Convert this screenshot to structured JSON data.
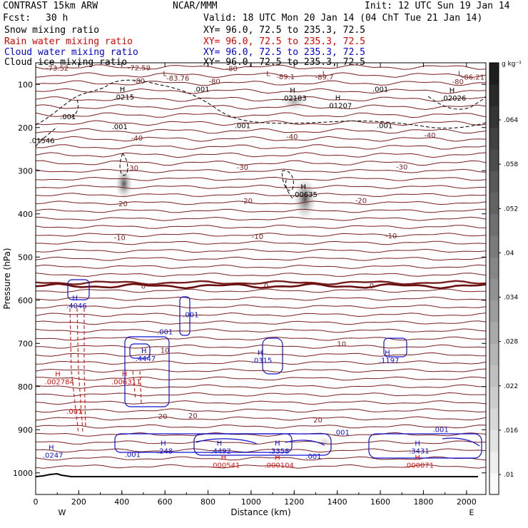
{
  "header": {
    "title": "CONTRAST 15km ARW",
    "org": "NCAR/MMM",
    "init": "Init: 12 UTC Sun 19 Jan 14",
    "fcst_label": "Fcst:",
    "fcst_value": "30 h",
    "valid": "Valid: 18 UTC Mon 20 Jan 14 (04 ChT Tue 21 Jan 14)"
  },
  "fields": [
    {
      "name": "Snow mixing ratio",
      "xy": "XY=  96.0, 72.5 to 235.3, 72.5",
      "color": "#000000"
    },
    {
      "name": "Rain water mixing ratio",
      "xy": "XY=  96.0, 72.5 to 235.3, 72.5",
      "color": "#e00000"
    },
    {
      "name": "Cloud water mixing ratio",
      "xy": "XY=  96.0, 72.5 to 235.3, 72.5",
      "color": "#0000e0"
    },
    {
      "name": "Cloud ice mixing ratio",
      "xy": "XY=  96.0, 72.5 to 235.3, 72.5",
      "color": "#000000"
    }
  ],
  "chart_data": {
    "type": "cross-section contour",
    "xlabel": "Distance (km)",
    "ylabel": "Pressure (hPa)",
    "xlim": [
      0,
      2090
    ],
    "ylim": [
      1050,
      50
    ],
    "x_ticks": [
      0,
      200,
      400,
      600,
      800,
      1000,
      1200,
      1400,
      1600,
      1800,
      2000
    ],
    "y_ticks": [
      100,
      200,
      300,
      400,
      500,
      600,
      700,
      800,
      900,
      1000
    ],
    "x_end_labels": {
      "left": "W",
      "right": "E"
    },
    "colorbar": {
      "units": "g kg⁻¹",
      "ticks": [
        ".064",
        ".058",
        ".052",
        ".04",
        ".034",
        ".028",
        ".022",
        ".016",
        ".01"
      ]
    },
    "temperature_contours": [
      {
        "label": "-80",
        "p": 110
      },
      {
        "label": "-40",
        "p": 220
      },
      {
        "label": "-30",
        "p": 295
      },
      {
        "label": "-20",
        "p": 375
      },
      {
        "label": "-10",
        "p": 452
      },
      {
        "label": "0",
        "p": 567
      },
      {
        "label": "10",
        "p": 702
      },
      {
        "label": "20",
        "p": 856
      }
    ],
    "temperature_labels": [
      {
        "text": "-73.52",
        "x": 100,
        "p": 63
      },
      {
        "text": "-72.59",
        "x": 480,
        "p": 62
      },
      {
        "text": "-80",
        "x": 910,
        "p": 64
      },
      {
        "text": "-80",
        "x": 480,
        "p": 93
      },
      {
        "text": "-80",
        "x": 830,
        "p": 94
      },
      {
        "text": "-83.76",
        "x": 660,
        "p": 86
      },
      {
        "text": "-89.1",
        "x": 1160,
        "p": 83
      },
      {
        "text": "-89.7",
        "x": 1340,
        "p": 84
      },
      {
        "text": "-86.21",
        "x": 2030,
        "p": 84
      },
      {
        "text": "-80",
        "x": 1960,
        "p": 95
      },
      {
        "text": "-40",
        "x": 470,
        "p": 225
      },
      {
        "text": "-40",
        "x": 1190,
        "p": 222
      },
      {
        "text": "-40",
        "x": 1830,
        "p": 219
      },
      {
        "text": "-30",
        "x": 450,
        "p": 295
      },
      {
        "text": "-30",
        "x": 960,
        "p": 293
      },
      {
        "text": "-30",
        "x": 1700,
        "p": 292
      },
      {
        "text": "-20",
        "x": 400,
        "p": 377
      },
      {
        "text": "-20",
        "x": 980,
        "p": 371
      },
      {
        "text": "-20",
        "x": 1510,
        "p": 370
      },
      {
        "text": "-10",
        "x": 390,
        "p": 456
      },
      {
        "text": "-10",
        "x": 1030,
        "p": 453
      },
      {
        "text": "-10",
        "x": 1650,
        "p": 452
      },
      {
        "text": "0",
        "x": 500,
        "p": 568
      },
      {
        "text": "0",
        "x": 1070,
        "p": 567
      },
      {
        "text": "0",
        "x": 1560,
        "p": 567
      },
      {
        "text": "10",
        "x": 600,
        "p": 717
      },
      {
        "text": "10",
        "x": 1420,
        "p": 702
      },
      {
        "text": "20",
        "x": 590,
        "p": 870
      },
      {
        "text": "20",
        "x": 730,
        "p": 868
      },
      {
        "text": "20",
        "x": 1310,
        "p": 878
      }
    ],
    "snow_labels": [
      {
        "text": "L",
        "x": 600,
        "p": 76
      },
      {
        "text": "L",
        "x": 1080,
        "p": 76
      },
      {
        "text": "L",
        "x": 1340,
        "p": 76
      },
      {
        "text": "L",
        "x": 1970,
        "p": 76
      }
    ],
    "snow_max": [
      {
        "text": ".00635",
        "x": 1250,
        "p": 356
      }
    ],
    "ice_labels": [
      {
        "text": ".001",
        "x": 770,
        "p": 112
      },
      {
        "text": ".001",
        "x": 1600,
        "p": 112
      },
      {
        "text": ".001",
        "x": 150,
        "p": 176
      },
      {
        "text": ".001",
        "x": 390,
        "p": 199
      },
      {
        "text": ".001",
        "x": 960,
        "p": 196
      },
      {
        "text": ".001",
        "x": 1620,
        "p": 196
      },
      {
        "text": ".01546",
        "x": 30,
        "p": 231
      }
    ],
    "ice_max": [
      {
        "text": ".0215",
        "x": 410,
        "p": 130
      },
      {
        "text": ".02183",
        "x": 1200,
        "p": 133
      },
      {
        "text": ".01207",
        "x": 1410,
        "p": 150
      },
      {
        "text": ".02026",
        "x": 1940,
        "p": 133
      }
    ],
    "cloud_water_max": [
      {
        "text": ".4046",
        "x": 190,
        "p": 614
      },
      {
        "text": ".4447",
        "x": 510,
        "p": 736
      },
      {
        "text": ".0315",
        "x": 1050,
        "p": 740
      },
      {
        "text": ".1197",
        "x": 1640,
        "p": 740
      },
      {
        "text": ".0247",
        "x": 80,
        "p": 960
      },
      {
        "text": ".248",
        "x": 600,
        "p": 950
      },
      {
        "text": ".4492",
        "x": 860,
        "p": 950
      },
      {
        "text": ".3358",
        "x": 1130,
        "p": 950
      },
      {
        "text": ".3431",
        "x": 1780,
        "p": 950
      }
    ],
    "cloud_water_labels": [
      {
        "text": ".001",
        "x": 600,
        "p": 674
      },
      {
        "text": ".001",
        "x": 720,
        "p": 634
      },
      {
        "text": ".001",
        "x": 450,
        "p": 958
      },
      {
        "text": ".001",
        "x": 1290,
        "p": 962
      },
      {
        "text": ".001",
        "x": 1420,
        "p": 907
      },
      {
        "text": ".001",
        "x": 1880,
        "p": 900
      }
    ],
    "rain_max": [
      {
        "text": ".002784",
        "x": 110,
        "p": 790
      },
      {
        "text": ".006311",
        "x": 420,
        "p": 790
      },
      {
        "text": ".000541",
        "x": 880,
        "p": 983
      },
      {
        "text": ".000104",
        "x": 1130,
        "p": 983
      },
      {
        "text": ".000071",
        "x": 1780,
        "p": 983
      }
    ],
    "rain_labels": [
      {
        "text": ".001",
        "x": 180,
        "p": 858
      }
    ]
  }
}
